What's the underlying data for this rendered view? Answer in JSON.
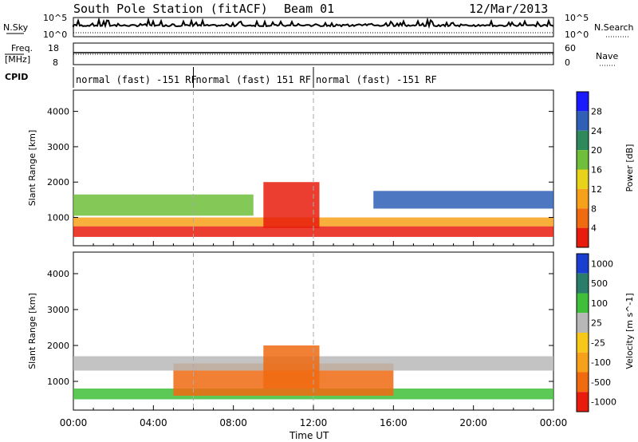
{
  "header": {
    "title": "South Pole Station (fitACF)",
    "beam": "Beam 01",
    "date": "12/Mar/2013"
  },
  "nsky_panel": {
    "left_label": "N.Sky",
    "right_label": "N.Search",
    "tick_top": "10^5",
    "tick_bottom": "10^0"
  },
  "freq_panel": {
    "left_label_top": "Freq.",
    "left_label_bottom": "[MHz]",
    "left_ticks": [
      "18",
      "8"
    ],
    "right_label": "Nave",
    "right_ticks": [
      "60",
      "0"
    ]
  },
  "cpid": {
    "label": "CPID",
    "segments": [
      {
        "start_hour": 0,
        "end_hour": 6,
        "text": "normal (fast) -151 RF"
      },
      {
        "start_hour": 6,
        "end_hour": 12,
        "text": "normal (fast) 151 RF"
      },
      {
        "start_hour": 12,
        "end_hour": 24,
        "text": "normal (fast) -151 RF"
      }
    ]
  },
  "chart_data": [
    {
      "type": "heatmap",
      "name": "Power",
      "ylabel": "Slant Range [km]",
      "xlabel": "Time UT",
      "xlim": [
        0,
        24
      ],
      "ylim": [
        200,
        4600
      ],
      "yticks": [
        1000,
        2000,
        3000,
        4000
      ],
      "xticks": [
        "00:00",
        "04:00",
        "08:00",
        "12:00",
        "16:00",
        "20:00",
        "00:00"
      ],
      "colorbar": {
        "label": "Power [dB]",
        "ticks": [
          "4",
          "8",
          "12",
          "16",
          "20",
          "24",
          "28"
        ],
        "colors": [
          "#1a1aff",
          "#2f5fb7",
          "#2e8a5a",
          "#6fbf3a",
          "#e8d21a",
          "#f7a11a",
          "#f06a10",
          "#e81c0c"
        ]
      },
      "bands": [
        {
          "t0": 0,
          "t1": 24,
          "r_low": 450,
          "r_high": 750,
          "color_index": 7
        },
        {
          "t0": 0,
          "t1": 24,
          "r_low": 750,
          "r_high": 1000,
          "color_index": 5
        },
        {
          "t0": 0,
          "t1": 9,
          "r_low": 1050,
          "r_high": 1650,
          "color_index": 3
        },
        {
          "t0": 15,
          "t1": 24,
          "r_low": 1250,
          "r_high": 1750,
          "color_index": 1
        },
        {
          "t0": 9.5,
          "t1": 12.3,
          "r_low": 700,
          "r_high": 2000,
          "color_index": 7
        }
      ]
    },
    {
      "type": "heatmap",
      "name": "Velocity",
      "ylabel": "Slant Range [km]",
      "xlabel": "Time UT",
      "xlim": [
        0,
        24
      ],
      "ylim": [
        200,
        4600
      ],
      "yticks": [
        1000,
        2000,
        3000,
        4000
      ],
      "xticks": [
        "00:00",
        "04:00",
        "08:00",
        "12:00",
        "16:00",
        "20:00",
        "00:00"
      ],
      "colorbar": {
        "label": "Velocity [m s^-1]",
        "ticks": [
          "1000",
          "500",
          "100",
          "25",
          "-25",
          "-100",
          "-500",
          "-1000"
        ],
        "colors": [
          "#1a3fd0",
          "#2a7d6a",
          "#3fbf3a",
          "#b8b8b8",
          "#f7c81a",
          "#f7a11a",
          "#f06a10",
          "#e81c0c"
        ]
      },
      "bands": [
        {
          "t0": 0,
          "t1": 24,
          "r_low": 500,
          "r_high": 800,
          "color_index": 2
        },
        {
          "t0": 5,
          "t1": 16,
          "r_low": 600,
          "r_high": 1500,
          "color_index": 6
        },
        {
          "t0": 0,
          "t1": 24,
          "r_low": 1300,
          "r_high": 1700,
          "color_index": 3
        },
        {
          "t0": 9.5,
          "t1": 12.3,
          "r_low": 800,
          "r_high": 2000,
          "color_index": 6
        }
      ]
    }
  ]
}
